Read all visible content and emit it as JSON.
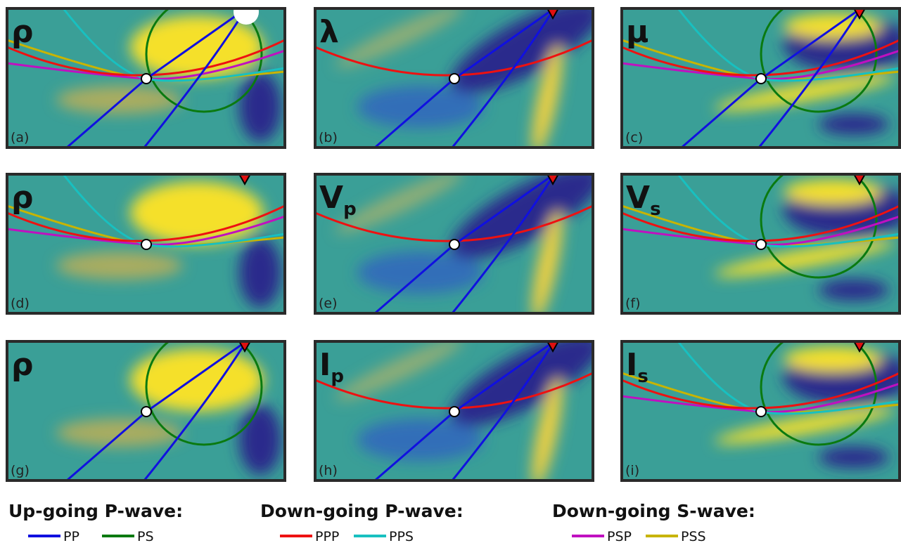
{
  "panels": [
    {
      "label": {
        "main": "ρ",
        "sub": ""
      },
      "tag": "(a)"
    },
    {
      "label": {
        "main": "λ",
        "sub": ""
      },
      "tag": "(b)"
    },
    {
      "label": {
        "main": "μ",
        "sub": ""
      },
      "tag": "(c)"
    },
    {
      "label": {
        "main": "ρ",
        "sub": ""
      },
      "tag": "(d)"
    },
    {
      "label": {
        "main": "V",
        "sub": "p"
      },
      "tag": "(e)"
    },
    {
      "label": {
        "main": "V",
        "sub": "s"
      },
      "tag": "(f)"
    },
    {
      "label": {
        "main": "ρ",
        "sub": ""
      },
      "tag": "(g)"
    },
    {
      "label": {
        "main": "I",
        "sub": "p"
      },
      "tag": "(h)"
    },
    {
      "label": {
        "main": "I",
        "sub": "s"
      },
      "tag": "(i)"
    }
  ],
  "legend": [
    {
      "title": "Up-going P-wave:",
      "items": [
        {
          "name": "PP",
          "color": "#1010e0"
        },
        {
          "name": "PS",
          "color": "#0a7a10"
        }
      ]
    },
    {
      "title": "Down-going P-wave:",
      "items": [
        {
          "name": "PPP",
          "color": "#ee1111"
        },
        {
          "name": "PPS",
          "color": "#18c0c0"
        }
      ]
    },
    {
      "title": "Down-going S-wave:",
      "items": [
        {
          "name": "PSP",
          "color": "#c010c0"
        },
        {
          "name": "PSS",
          "color": "#c8b400"
        }
      ]
    }
  ]
}
